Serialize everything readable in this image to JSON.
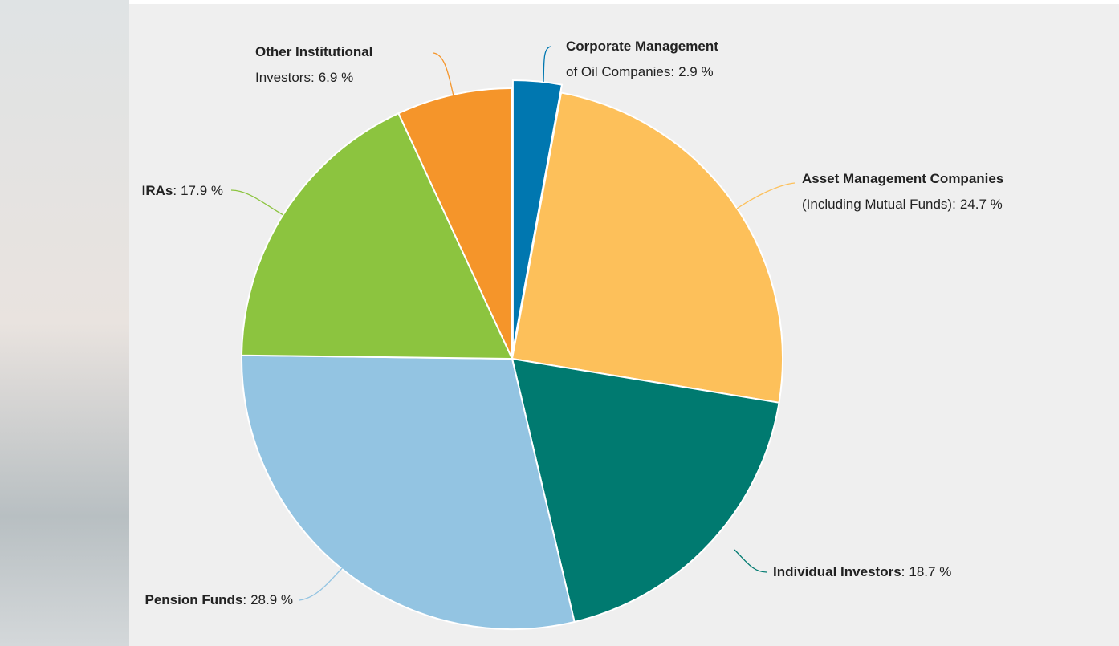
{
  "chart_data": {
    "type": "pie",
    "categories": [
      "Corporate Management",
      "Asset Management Companies",
      "Individual Investors",
      "Pension Funds",
      "IRAs",
      "Other Institutional"
    ],
    "category_suffixes": [
      "of Oil Companies",
      "(Including Mutual Funds)",
      null,
      null,
      null,
      "Investors"
    ],
    "label_separator": ":",
    "values": [
      2.9,
      24.7,
      18.7,
      28.9,
      17.9,
      6.9
    ],
    "value_labels": [
      "2.9 %",
      "24.7 %",
      "18.7 %",
      "28.9 %",
      "17.9 %",
      "6.9 %"
    ],
    "colors": [
      "#0077b0",
      "#fdc05a",
      "#007a70",
      "#93c4e2",
      "#8cc43f",
      "#f5952a"
    ],
    "exploded": [
      0
    ]
  }
}
